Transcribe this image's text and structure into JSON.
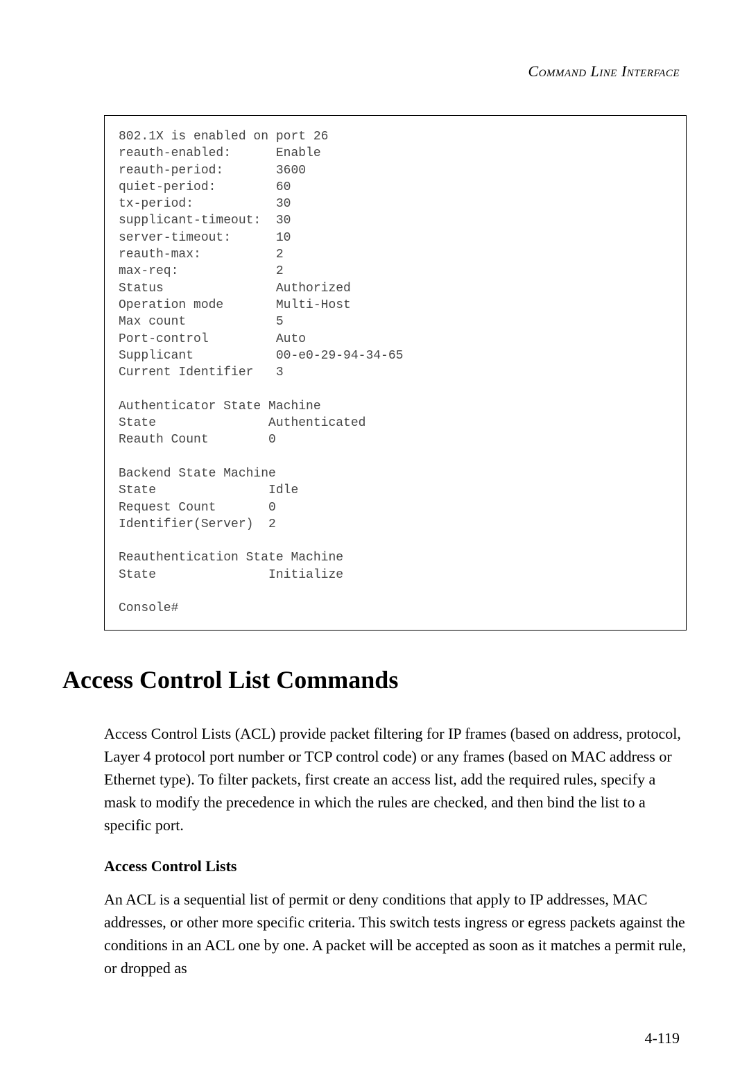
{
  "header": {
    "running_title": "Command Line Interface"
  },
  "console": {
    "text": "802.1X is enabled on port 26\nreauth-enabled:      Enable\nreauth-period:       3600\nquiet-period:        60\ntx-period:           30\nsupplicant-timeout:  30\nserver-timeout:      10\nreauth-max:          2\nmax-req:             2\nStatus               Authorized\nOperation mode       Multi-Host\nMax count            5\nPort-control         Auto\nSupplicant           00-e0-29-94-34-65\nCurrent Identifier   3\n\nAuthenticator State Machine\nState               Authenticated\nReauth Count        0\n\nBackend State Machine\nState               Idle\nRequest Count       0\nIdentifier(Server)  2\n\nReauthentication State Machine\nState               Initialize\n\nConsole#"
  },
  "section": {
    "heading": "Access Control List Commands",
    "paragraph1": "Access Control Lists (ACL) provide packet filtering for IP frames (based on address, protocol, Layer 4 protocol port number or TCP control code) or any frames (based on MAC address or Ethernet type). To filter packets, first create an access list, add the required rules, specify a mask to modify the precedence in which the rules are checked, and then bind the list to a specific port.",
    "sub_heading": "Access Control Lists",
    "paragraph2": "An ACL is a sequential list of permit or deny conditions that apply to IP addresses, MAC addresses, or other more specific criteria. This switch tests ingress or egress packets against the conditions in an ACL one by one. A packet will be accepted as soon as it matches a permit rule, or dropped as"
  },
  "footer": {
    "page_number": "4-119"
  }
}
